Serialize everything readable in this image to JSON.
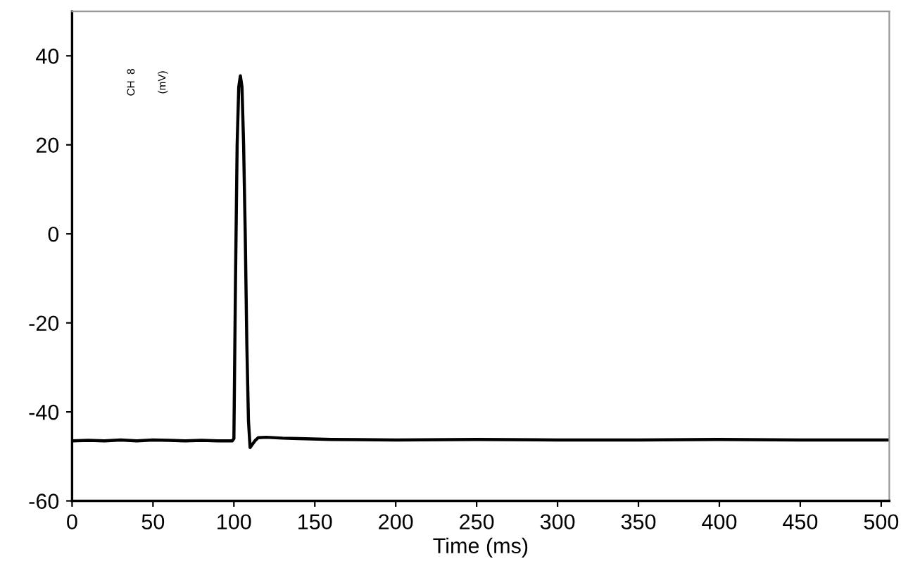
{
  "chart_data": {
    "type": "line",
    "xlabel": "Time (ms)",
    "annotations": [
      "CH  8",
      "(mV)"
    ],
    "x": [
      0,
      10,
      20,
      30,
      40,
      50,
      60,
      70,
      80,
      90,
      99,
      100,
      101,
      102,
      103,
      104,
      105,
      106,
      107,
      108,
      109,
      110,
      111,
      113,
      115,
      120,
      130,
      140,
      160,
      200,
      250,
      300,
      350,
      400,
      450,
      505
    ],
    "series": [
      {
        "color": "#000000",
        "values": [
          -46.5,
          -46.4,
          -46.5,
          -46.3,
          -46.5,
          -46.3,
          -46.4,
          -46.5,
          -46.4,
          -46.5,
          -46.5,
          -46,
          -10,
          20,
          33,
          35.5,
          33,
          20,
          0,
          -25,
          -42,
          -48,
          -47.5,
          -46.5,
          -45.8,
          -45.7,
          -45.9,
          -46,
          -46.2,
          -46.3,
          -46.2,
          -46.3,
          -46.3,
          -46.2,
          -46.3,
          -46.3
        ]
      }
    ],
    "xlim": [
      0,
      505
    ],
    "ylim": [
      -60,
      50
    ],
    "xticks": [
      0,
      50,
      100,
      150,
      200,
      250,
      300,
      350,
      400,
      450,
      500
    ],
    "yticks": [
      -60,
      -40,
      -20,
      0,
      20,
      40
    ],
    "grid": false,
    "legend": false
  }
}
